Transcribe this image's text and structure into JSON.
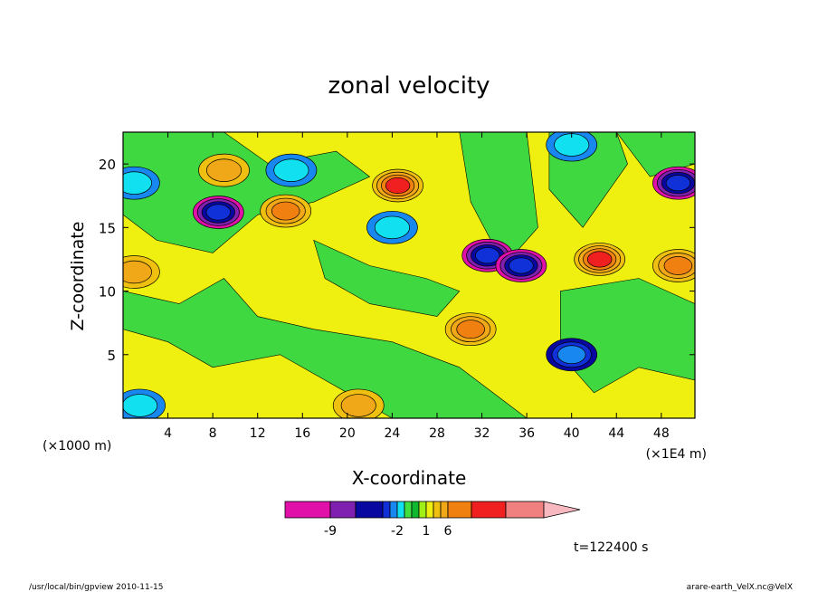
{
  "chart_data": {
    "type": "heatmap",
    "title": "zonal velocity",
    "xlabel": "X-coordinate",
    "ylabel": "Z-coordinate",
    "x_unit_left": "(×1000 m)",
    "x_unit_right": "(×1E4 m)",
    "x_ticks": [
      4,
      8,
      12,
      16,
      20,
      24,
      28,
      32,
      36,
      40,
      44,
      48
    ],
    "y_ticks": [
      5,
      10,
      15,
      20
    ],
    "xlim": [
      0,
      51
    ],
    "ylim": [
      0,
      22.5
    ],
    "grid": false,
    "time_label": "t=122400 s",
    "colorbar": {
      "labels": [
        "-9",
        "-2",
        "1",
        "6"
      ],
      "label_values": [
        -9,
        -2,
        1,
        6
      ],
      "colors": [
        "#e010a8",
        "#8020b0",
        "#0808a0",
        "#1030d8",
        "#1888f0",
        "#10e0f0",
        "#40e040",
        "#10b830",
        "#a0f018",
        "#f0f010",
        "#f0c010",
        "#f0a818",
        "#f08010",
        "#f02020",
        "#f08080",
        "#f8b8c0"
      ]
    },
    "fields": [
      {
        "x": 1,
        "z": 18.5,
        "v": -4
      },
      {
        "x": 8.5,
        "z": 16.2,
        "v": -9
      },
      {
        "x": 9,
        "z": 19.5,
        "v": 4
      },
      {
        "x": 14.5,
        "z": 16.3,
        "v": 5
      },
      {
        "x": 15,
        "z": 19.5,
        "v": -4
      },
      {
        "x": 24.5,
        "z": 18.3,
        "v": 7
      },
      {
        "x": 24,
        "z": 15,
        "v": -2
      },
      {
        "x": 32.5,
        "z": 12.8,
        "v": -9
      },
      {
        "x": 35.5,
        "z": 12,
        "v": -9
      },
      {
        "x": 42.5,
        "z": 12.5,
        "v": 7
      },
      {
        "x": 49.5,
        "z": 18.5,
        "v": -9
      },
      {
        "x": 49.5,
        "z": 12,
        "v": 5
      },
      {
        "x": 1,
        "z": 11.5,
        "v": 4
      },
      {
        "x": 31,
        "z": 7,
        "v": 5
      },
      {
        "x": 40,
        "z": 5,
        "v": -5
      },
      {
        "x": 1.5,
        "z": 1,
        "v": -3
      },
      {
        "x": 21,
        "z": 1,
        "v": 4
      },
      {
        "x": 40,
        "z": 21.5,
        "v": -4
      }
    ]
  },
  "footer": {
    "left": "/usr/local/bin/gpview  2010-11-15",
    "right": "arare-earth_VelX.nc@VelX"
  }
}
